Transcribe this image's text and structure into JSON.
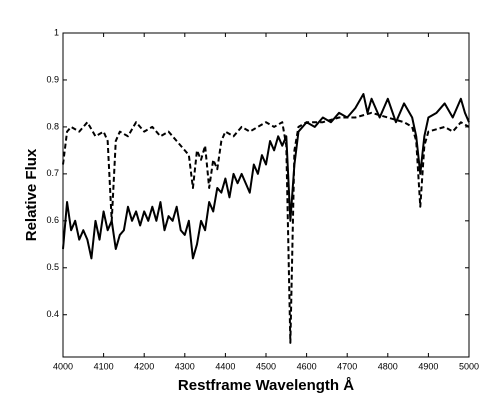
{
  "chart_data": {
    "type": "line",
    "xlabel": "Restframe Wavelength Å",
    "ylabel": "Relative Flux",
    "xlim": [
      4000,
      5000
    ],
    "xticks": [
      4000,
      4100,
      4200,
      4300,
      4400,
      4500,
      4600,
      4700,
      4800,
      4900,
      5000
    ],
    "ylim": [
      0.31,
      1
    ],
    "yticks": [
      0.4,
      0.5,
      0.6,
      0.7,
      0.8,
      0.9,
      1
    ],
    "series": [
      {
        "color": "#000000",
        "linestyle": "solid",
        "x": [
          4000,
          4010,
          4020,
          4030,
          4040,
          4050,
          4060,
          4070,
          4080,
          4090,
          4100,
          4110,
          4120,
          4130,
          4140,
          4150,
          4160,
          4170,
          4180,
          4190,
          4200,
          4210,
          4220,
          4230,
          4240,
          4250,
          4260,
          4270,
          4280,
          4290,
          4300,
          4310,
          4320,
          4330,
          4340,
          4350,
          4360,
          4370,
          4380,
          4390,
          4400,
          4410,
          4420,
          4430,
          4440,
          4450,
          4460,
          4470,
          4480,
          4490,
          4500,
          4510,
          4520,
          4530,
          4540,
          4550,
          4560,
          4570,
          4580,
          4590,
          4600,
          4620,
          4640,
          4660,
          4680,
          4700,
          4720,
          4740,
          4750,
          4760,
          4780,
          4800,
          4820,
          4840,
          4860,
          4870,
          4880,
          4890,
          4900,
          4920,
          4940,
          4960,
          4980,
          4990,
          5000
        ],
        "values": [
          0.54,
          0.64,
          0.58,
          0.6,
          0.56,
          0.58,
          0.56,
          0.52,
          0.6,
          0.56,
          0.62,
          0.58,
          0.6,
          0.54,
          0.57,
          0.58,
          0.63,
          0.6,
          0.62,
          0.59,
          0.62,
          0.6,
          0.63,
          0.6,
          0.64,
          0.58,
          0.61,
          0.6,
          0.63,
          0.58,
          0.57,
          0.6,
          0.52,
          0.55,
          0.6,
          0.58,
          0.64,
          0.62,
          0.67,
          0.66,
          0.69,
          0.65,
          0.7,
          0.68,
          0.7,
          0.68,
          0.66,
          0.72,
          0.7,
          0.74,
          0.72,
          0.77,
          0.75,
          0.78,
          0.76,
          0.78,
          0.6,
          0.72,
          0.79,
          0.8,
          0.81,
          0.8,
          0.82,
          0.81,
          0.83,
          0.82,
          0.84,
          0.87,
          0.83,
          0.86,
          0.82,
          0.86,
          0.81,
          0.85,
          0.82,
          0.78,
          0.7,
          0.78,
          0.82,
          0.83,
          0.85,
          0.82,
          0.86,
          0.83,
          0.81
        ]
      },
      {
        "color": "#000000",
        "linestyle": "dashed",
        "x": [
          4000,
          4010,
          4020,
          4040,
          4060,
          4080,
          4100,
          4110,
          4120,
          4130,
          4140,
          4160,
          4180,
          4200,
          4220,
          4240,
          4260,
          4280,
          4300,
          4310,
          4320,
          4330,
          4340,
          4350,
          4360,
          4370,
          4380,
          4390,
          4400,
          4420,
          4440,
          4460,
          4480,
          4500,
          4520,
          4540,
          4550,
          4560,
          4570,
          4580,
          4600,
          4640,
          4680,
          4720,
          4760,
          4800,
          4840,
          4860,
          4870,
          4880,
          4890,
          4900,
          4940,
          4960,
          4980,
          5000
        ],
        "values": [
          0.72,
          0.79,
          0.8,
          0.79,
          0.81,
          0.78,
          0.79,
          0.77,
          0.6,
          0.77,
          0.79,
          0.78,
          0.81,
          0.79,
          0.8,
          0.78,
          0.79,
          0.77,
          0.75,
          0.74,
          0.67,
          0.75,
          0.73,
          0.76,
          0.67,
          0.73,
          0.71,
          0.77,
          0.79,
          0.78,
          0.8,
          0.79,
          0.8,
          0.81,
          0.8,
          0.81,
          0.76,
          0.34,
          0.75,
          0.8,
          0.81,
          0.81,
          0.82,
          0.82,
          0.83,
          0.82,
          0.81,
          0.8,
          0.77,
          0.63,
          0.76,
          0.79,
          0.8,
          0.79,
          0.81,
          0.8
        ]
      }
    ]
  }
}
